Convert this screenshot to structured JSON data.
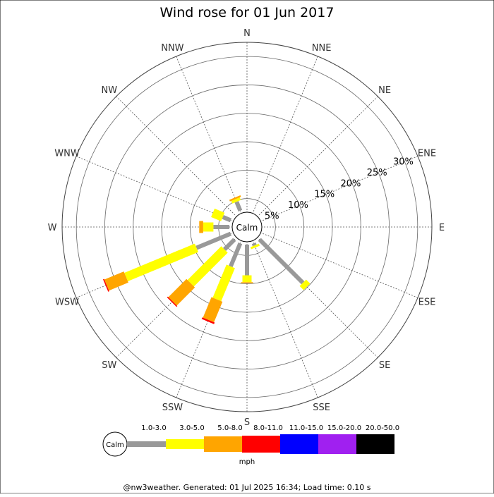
{
  "title": "Wind rose for 01 Jun 2017",
  "calm_label": "Calm",
  "units": "mph",
  "footer": "@nw3weather. Generated: 01 Jul 2025 16:34; Load time: 0.10 s",
  "colors": {
    "1.0-3.0": "#999999",
    "3.0-5.0": "#ffff00",
    "5.0-8.0": "#ffa500",
    "8.0-11.0": "#ff0000",
    "11.0-15.0": "#0000ff",
    "15.0-20.0": "#a020f0",
    "20.0-50.0": "#000000"
  },
  "chart_data": {
    "type": "wind-rose",
    "title": "Wind rose for 01 Jun 2017",
    "directions": [
      "N",
      "NNE",
      "NE",
      "ENE",
      "E",
      "ESE",
      "SE",
      "SSE",
      "S",
      "SSW",
      "SW",
      "WSW",
      "W",
      "WNW",
      "NW",
      "NNW"
    ],
    "direction_angles": [
      0,
      22.5,
      45,
      67.5,
      90,
      112.5,
      135,
      157.5,
      180,
      202.5,
      225,
      247.5,
      270,
      292.5,
      315,
      337.5
    ],
    "ring_labels": [
      "5%",
      "10%",
      "15%",
      "20%",
      "25%",
      "30%"
    ],
    "ring_values": [
      5,
      10,
      15,
      20,
      25,
      30
    ],
    "rmax": 32.5,
    "speed_bins": [
      "1.0-3.0",
      "3.0-5.0",
      "5.0-8.0",
      "8.0-11.0",
      "11.0-15.0",
      "15.0-20.0",
      "20.0-50.0"
    ],
    "series": [
      {
        "direction": "SE",
        "cumulative": [
          10.8,
          11.8
        ]
      },
      {
        "direction": "SSE",
        "cumulative": [
          0.4,
          0.8
        ]
      },
      {
        "direction": "S",
        "cumulative": [
          5.4,
          6.6,
          6.8
        ]
      },
      {
        "direction": "SSW",
        "cumulative": [
          4.4,
          10.7,
          14.6,
          14.9
        ]
      },
      {
        "direction": "SW",
        "cumulative": [
          2.5,
          10.9,
          15.4,
          15.6
        ]
      },
      {
        "direction": "WSW",
        "cumulative": [
          6.5,
          19.9,
          23.6,
          23.8
        ]
      },
      {
        "direction": "W",
        "cumulative": [
          2.8,
          4.6,
          5.3
        ]
      },
      {
        "direction": "WNW",
        "cumulative": [
          1.5,
          3.4
        ]
      },
      {
        "direction": "NNW",
        "cumulative": [
          1.7,
          2.2,
          2.5
        ]
      }
    ],
    "legend": {
      "calm": "Calm",
      "labels": [
        "1.0-3.0",
        "3.0-5.0",
        "5.0-8.0",
        "8.0-11.0",
        "11.0-15.0",
        "15.0-20.0",
        "20.0-50.0"
      ],
      "unit": "mph"
    },
    "grid": true
  }
}
